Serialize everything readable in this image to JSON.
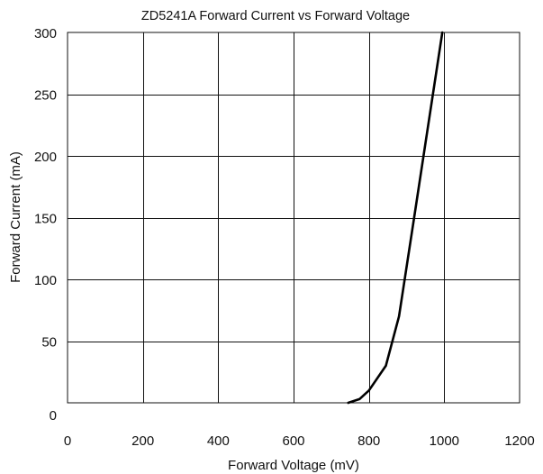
{
  "chart_data": {
    "type": "line",
    "title": "ZD5241A Forward Current vs Forward Voltage",
    "xlabel": "Forward Voltage (mV)",
    "ylabel": "Forward Current (mA)",
    "xlim": [
      0,
      1200
    ],
    "ylim": [
      0,
      300
    ],
    "xticks": [
      0,
      200,
      400,
      600,
      800,
      1000,
      1200
    ],
    "yticks": [
      0,
      50,
      100,
      150,
      200,
      250,
      300
    ],
    "grid": true,
    "legend": "none",
    "series": [
      {
        "color": "#000000",
        "x": [
          745,
          775,
          800,
          845,
          880,
          920,
          955,
          995
        ],
        "y": [
          0,
          3,
          10,
          30,
          70,
          150,
          220,
          300
        ]
      }
    ]
  }
}
